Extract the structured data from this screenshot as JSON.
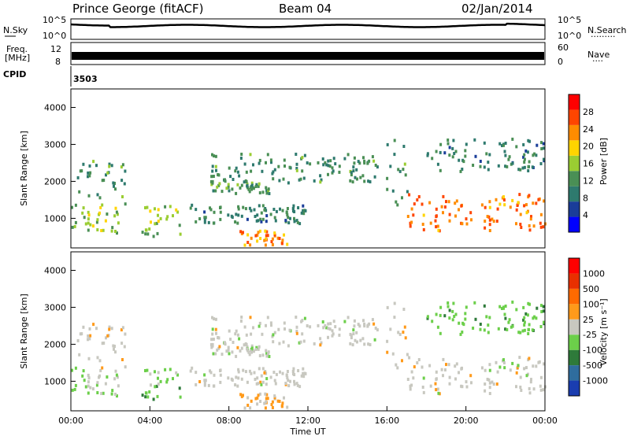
{
  "header": {
    "station": "Prince George (fitACF)",
    "beam": "Beam 04",
    "date": "02/Jan/2014"
  },
  "noise_panel": {
    "left_label": "N.Sky",
    "right_label": "N.Search",
    "right_legend": "·········",
    "left_ticks": [
      "10^5",
      "10^0"
    ],
    "right_ticks": [
      "10^5",
      "10^0"
    ]
  },
  "freq_panel": {
    "left_label_1": "Freq.",
    "left_label_2": "[MHz]",
    "right_label": "Nave",
    "right_legend": "····",
    "left_ticks": [
      "12",
      "8"
    ],
    "right_ticks": [
      "60",
      "0"
    ]
  },
  "cpid_panel": {
    "label": "CPID",
    "value": "3503"
  },
  "power_panel": {
    "ylabel": "Slant Range [km]",
    "colorbar_label": "Power [dB]",
    "colorbar_ticks": [
      "28",
      "24",
      "20",
      "16",
      "12",
      "8",
      "4"
    ]
  },
  "velocity_panel": {
    "ylabel": "Slant Range [km]",
    "colorbar_label": "Velocity [m s⁻¹]",
    "colorbar_ticks": [
      "1000",
      "500",
      "100",
      "25",
      "-25",
      "-100",
      "-500",
      "-1000"
    ]
  },
  "xaxis": {
    "label": "Time UT",
    "ticks": [
      "00:00",
      "04:00",
      "08:00",
      "12:00",
      "16:00",
      "20:00",
      "00:00"
    ]
  },
  "colors": {
    "power_scale": [
      "#0000ff",
      "#1a3d99",
      "#2e7a6e",
      "#4a8f55",
      "#9acd32",
      "#ffd400",
      "#ff8c00",
      "#ff4500",
      "#ff0000"
    ],
    "velocity_scale": [
      "#1a3db0",
      "#2f6d9e",
      "#2e7a3a",
      "#6ccf4a",
      "#c8c8c0",
      "#ff9a1a",
      "#ff6a00",
      "#e83000",
      "#ff0000"
    ]
  },
  "chart_data": {
    "type": "heatmap",
    "x_unit": "hours UT",
    "xlim": [
      0,
      24
    ],
    "ylim": [
      200,
      4500
    ],
    "y_ticks": [
      1000,
      2000,
      3000,
      4000
    ],
    "power_range_db": [
      0,
      30
    ],
    "velocity_range": [
      -1000,
      1000
    ],
    "echo_regions": [
      {
        "t0": 0.0,
        "t1": 2.5,
        "r0": 600,
        "r1": 1400,
        "power": 14,
        "velocity": -150
      },
      {
        "t0": 0.3,
        "t1": 2.8,
        "r0": 1400,
        "r1": 2600,
        "power": 10,
        "velocity": 20
      },
      {
        "t0": 3.5,
        "t1": 5.5,
        "r0": 550,
        "r1": 1400,
        "power": 14,
        "velocity": -250
      },
      {
        "t0": 6.0,
        "t1": 12.0,
        "r0": 900,
        "r1": 1400,
        "power": 9,
        "velocity": 10
      },
      {
        "t0": 7.0,
        "t1": 10.0,
        "r0": 1700,
        "r1": 2000,
        "power": 12,
        "velocity": -10
      },
      {
        "t0": 7.0,
        "t1": 15.5,
        "r0": 2000,
        "r1": 2800,
        "power": 10,
        "velocity": 0
      },
      {
        "t0": 8.5,
        "t1": 11.0,
        "r0": 300,
        "r1": 700,
        "power": 22,
        "velocity": 150
      },
      {
        "t0": 15.8,
        "t1": 17.0,
        "r0": 1400,
        "r1": 3200,
        "power": 10,
        "velocity": 80
      },
      {
        "t0": 17.0,
        "t1": 24.0,
        "r0": 700,
        "r1": 1700,
        "power": 24,
        "velocity": 0
      },
      {
        "t0": 18.0,
        "t1": 24.0,
        "r0": 2300,
        "r1": 3200,
        "power": 8,
        "velocity": -300
      }
    ],
    "noise": {
      "typical_log10": 4.3
    },
    "freq_mhz": 10.6
  }
}
